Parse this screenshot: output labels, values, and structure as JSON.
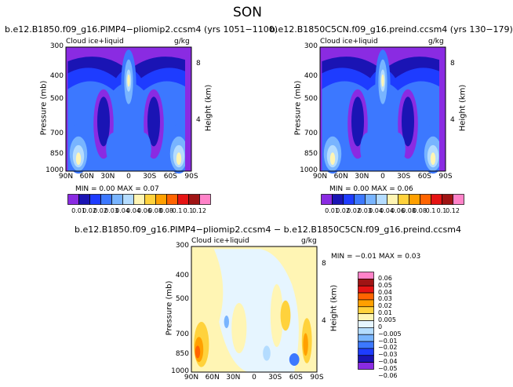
{
  "title": "SON",
  "colors": {
    "top_palette": [
      "#8a2be2",
      "#1a14b4",
      "#1e3cff",
      "#3c78ff",
      "#78b4ff",
      "#b4dcff",
      "#fff5b4",
      "#ffd23c",
      "#ffa000",
      "#ff6400",
      "#e61414",
      "#a01414",
      "#ff82c8"
    ],
    "diff_palette": [
      "#8a2be2",
      "#1a14b4",
      "#1e3cff",
      "#3c78ff",
      "#78b4ff",
      "#b4dcff",
      "#e6f5ff",
      "#fff5b4",
      "#ffd23c",
      "#ffa000",
      "#ff6400",
      "#e61414",
      "#a01414",
      "#ff82c8"
    ]
  },
  "chart_data": [
    {
      "type": "heatmap",
      "title": "b.e12.B1850.f09_g16.PIMP4−pliomip2.ccsm4  (yrs 1051−1100)",
      "field_label": "Cloud ice+liquid",
      "units": "g/kg",
      "ylabel": "Pressure (mb)",
      "y2label": "Height (km)",
      "x_ticks": [
        "90N",
        "60N",
        "30N",
        "0",
        "30S",
        "60S",
        "90S"
      ],
      "y_ticks": [
        "300",
        "400",
        "500",
        "700",
        "850",
        "1000"
      ],
      "y2_ticks": [
        "8",
        "4"
      ],
      "stats_text": "MIN =    0.00   MAX =    0.07",
      "colorbar": {
        "levels": [
          "0.01",
          "0.02",
          "0.02",
          "0.03",
          "0.04",
          "0.04",
          "0.06",
          "0.08",
          "0.08",
          "0.1",
          "0.1",
          "0.12"
        ]
      }
    },
    {
      "type": "heatmap",
      "title": "b.e12.B1850C5CN.f09_g16.preind.ccsm4  (yrs 130−179)",
      "field_label": "Cloud ice+liquid",
      "units": "g/kg",
      "ylabel": "Pressure (mb)",
      "y2label": "Height (km)",
      "x_ticks": [
        "90N",
        "60N",
        "30N",
        "0",
        "30S",
        "60S",
        "90S"
      ],
      "y_ticks": [
        "300",
        "400",
        "500",
        "700",
        "850",
        "1000"
      ],
      "y2_ticks": [
        "8",
        "4"
      ],
      "stats_text": "MIN =    0.00   MAX =    0.06",
      "colorbar": {
        "levels": [
          "0.01",
          "0.02",
          "0.02",
          "0.03",
          "0.04",
          "0.04",
          "0.06",
          "0.08",
          "0.08",
          "0.1",
          "0.1",
          "0.12"
        ]
      }
    },
    {
      "type": "heatmap",
      "title": "b.e12.B1850.f09_g16.PIMP4−pliomip2.ccsm4 − b.e12.B1850C5CN.f09_g16.preind.ccsm4",
      "field_label": "Cloud ice+liquid",
      "units": "g/kg",
      "ylabel": "Pressure (mb)",
      "y2label": "Height (km)",
      "x_ticks": [
        "90N",
        "60N",
        "30N",
        "0",
        "30S",
        "60S",
        "90S"
      ],
      "y_ticks": [
        "300",
        "400",
        "500",
        "700",
        "850",
        "1000"
      ],
      "y2_ticks": [
        "8",
        "4"
      ],
      "stats_text": "MIN =   −0.01    MAX =    0.03",
      "colorbar": {
        "levels": [
          "0.06",
          "0.05",
          "0.04",
          "0.03",
          "0.02",
          "0.01",
          "0.005",
          "0",
          "−0.005",
          "−0.01",
          "−0.02",
          "−0.03",
          "−0.04",
          "−0.05",
          "−0.06"
        ]
      }
    }
  ]
}
